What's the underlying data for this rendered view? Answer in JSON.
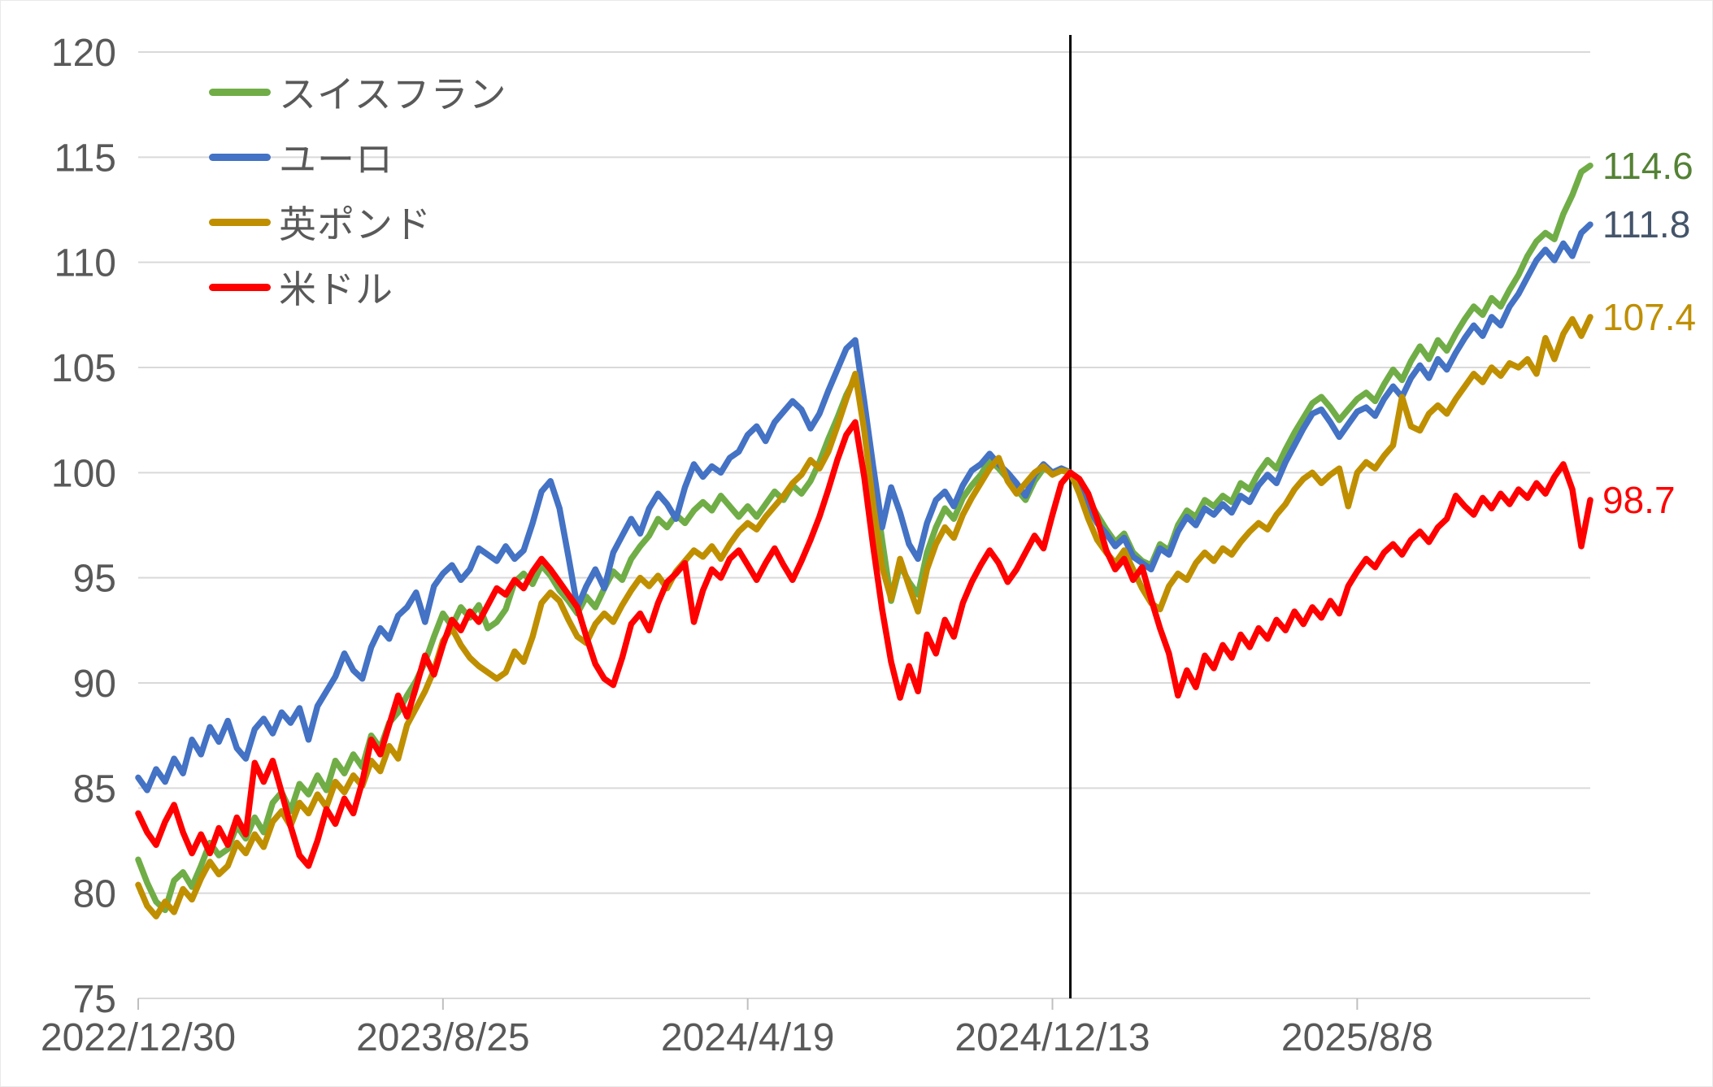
{
  "chart_data": {
    "type": "line",
    "title": "",
    "xlabel": "",
    "ylabel": "",
    "grid": true,
    "legend_position": "top-left-inside",
    "x_axis": {
      "start_label": "2022/12/30",
      "tick_indices": [
        0,
        34,
        68,
        102,
        136
      ],
      "tick_labels": [
        "2022/12/30",
        "2023/8/25",
        "2024/4/19",
        "2024/12/13",
        "2025/8/8"
      ],
      "frequency": "weekly"
    },
    "y_axis": {
      "min": 75,
      "max": 120,
      "step": 5,
      "tick_labels_top_down": [
        "120",
        "115",
        "110",
        "105",
        "100",
        "95",
        "90",
        "85",
        "80",
        "75"
      ]
    },
    "event_line": {
      "index": 104,
      "color": "#000000",
      "meaning": "index base = 100"
    },
    "series": [
      {
        "name": "スイスフラン",
        "color": "#70AD47",
        "label_color": "#548235",
        "end_label": "114.6",
        "end_value": 114.6,
        "values": [
          81.6,
          80.5,
          79.6,
          79.2,
          80.6,
          81.0,
          80.3,
          81.3,
          82.4,
          81.8,
          82.1,
          83.2,
          82.6,
          83.6,
          82.9,
          84.3,
          84.8,
          83.9,
          85.2,
          84.7,
          85.6,
          84.9,
          86.3,
          85.7,
          86.6,
          86.0,
          87.5,
          86.9,
          88.1,
          88.6,
          89.4,
          90.1,
          91.0,
          92.2,
          93.3,
          92.7,
          93.6,
          93.1,
          93.7,
          92.6,
          92.9,
          93.5,
          94.8,
          95.2,
          94.7,
          95.6,
          95.1,
          94.4,
          93.9,
          93.3,
          94.1,
          93.6,
          94.5,
          95.3,
          94.9,
          95.9,
          96.5,
          97.0,
          97.8,
          97.4,
          98.0,
          97.6,
          98.2,
          98.6,
          98.2,
          98.9,
          98.4,
          97.9,
          98.4,
          97.9,
          98.5,
          99.1,
          98.7,
          99.4,
          99.0,
          99.6,
          100.5,
          101.6,
          102.6,
          103.7,
          104.5,
          102.6,
          99.8,
          96.8,
          93.9,
          95.6,
          94.8,
          94.2,
          96.2,
          97.4,
          98.3,
          97.8,
          98.8,
          99.4,
          99.9,
          100.6,
          100.2,
          99.7,
          99.2,
          98.7,
          99.6,
          100.2,
          100.0,
          100.2,
          100.0,
          99.4,
          98.7,
          98.0,
          97.3,
          96.7,
          97.1,
          96.2,
          95.8,
          95.6,
          96.6,
          96.3,
          97.5,
          98.2,
          97.9,
          98.7,
          98.4,
          98.9,
          98.6,
          99.5,
          99.2,
          100.0,
          100.6,
          100.2,
          101.1,
          101.9,
          102.6,
          103.3,
          103.6,
          103.1,
          102.5,
          103.0,
          103.5,
          103.8,
          103.4,
          104.2,
          104.9,
          104.4,
          105.3,
          106.0,
          105.4,
          106.3,
          105.8,
          106.6,
          107.3,
          107.9,
          107.5,
          108.3,
          107.9,
          108.7,
          109.4,
          110.3,
          111.0,
          111.4,
          111.1,
          112.3,
          113.2,
          114.3,
          114.6
        ]
      },
      {
        "name": "ユーロ",
        "color": "#4472C4",
        "label_color": "#44546A",
        "end_label": "111.8",
        "end_value": 111.8,
        "values": [
          85.5,
          84.9,
          85.9,
          85.3,
          86.4,
          85.7,
          87.3,
          86.6,
          87.9,
          87.2,
          88.2,
          86.9,
          86.4,
          87.8,
          88.3,
          87.6,
          88.6,
          88.1,
          88.8,
          87.3,
          88.9,
          89.6,
          90.3,
          91.4,
          90.6,
          90.2,
          91.7,
          92.6,
          92.1,
          93.2,
          93.6,
          94.3,
          92.9,
          94.6,
          95.2,
          95.6,
          94.9,
          95.4,
          96.4,
          96.1,
          95.8,
          96.5,
          95.9,
          96.3,
          97.6,
          99.1,
          99.6,
          98.3,
          96.0,
          93.6,
          94.6,
          95.4,
          94.5,
          96.2,
          97.0,
          97.8,
          97.1,
          98.3,
          99.0,
          98.5,
          97.8,
          99.3,
          100.4,
          99.8,
          100.3,
          100.0,
          100.7,
          101.0,
          101.8,
          102.2,
          101.5,
          102.4,
          102.9,
          103.4,
          103.0,
          102.1,
          102.8,
          103.9,
          104.9,
          105.9,
          106.3,
          103.4,
          100.3,
          97.4,
          99.3,
          98.1,
          96.6,
          95.9,
          97.6,
          98.7,
          99.1,
          98.4,
          99.4,
          100.1,
          100.4,
          100.9,
          100.4,
          100.0,
          99.5,
          98.9,
          99.9,
          100.4,
          100.0,
          100.2,
          100.0,
          99.2,
          98.4,
          97.6,
          97.1,
          96.5,
          96.9,
          96.0,
          95.7,
          95.4,
          96.4,
          96.1,
          97.2,
          97.9,
          97.5,
          98.3,
          98.0,
          98.5,
          98.1,
          98.9,
          98.6,
          99.4,
          99.9,
          99.5,
          100.5,
          101.3,
          102.1,
          102.8,
          103.0,
          102.4,
          101.7,
          102.3,
          102.9,
          103.1,
          102.7,
          103.5,
          104.1,
          103.6,
          104.5,
          105.1,
          104.5,
          105.4,
          104.9,
          105.7,
          106.4,
          107.0,
          106.5,
          107.4,
          107.0,
          107.9,
          108.5,
          109.3,
          110.1,
          110.6,
          110.1,
          110.9,
          110.3,
          111.4,
          111.8
        ]
      },
      {
        "name": "英ポンド",
        "color": "#BF8F00",
        "label_color": "#BF8F00",
        "end_label": "107.4",
        "end_value": 107.4,
        "values": [
          80.4,
          79.4,
          78.9,
          79.6,
          79.1,
          80.2,
          79.7,
          80.7,
          81.5,
          80.9,
          81.3,
          82.4,
          81.9,
          82.8,
          82.2,
          83.4,
          83.9,
          83.2,
          84.3,
          83.8,
          84.7,
          84.1,
          85.3,
          84.8,
          85.6,
          85.1,
          86.3,
          85.8,
          87.0,
          86.4,
          88.0,
          88.8,
          89.6,
          90.6,
          92.0,
          92.6,
          91.8,
          91.2,
          90.8,
          90.5,
          90.2,
          90.5,
          91.5,
          91.0,
          92.2,
          93.8,
          94.3,
          93.9,
          93.0,
          92.2,
          91.9,
          92.8,
          93.3,
          92.9,
          93.7,
          94.4,
          95.0,
          94.6,
          95.1,
          94.5,
          95.3,
          95.8,
          96.3,
          96.0,
          96.5,
          95.9,
          96.6,
          97.2,
          97.6,
          97.3,
          97.9,
          98.4,
          98.9,
          99.5,
          99.9,
          100.6,
          100.2,
          101.0,
          102.2,
          103.5,
          104.7,
          102.0,
          98.5,
          95.5,
          94.0,
          95.9,
          94.6,
          93.4,
          95.4,
          96.6,
          97.4,
          96.9,
          98.0,
          98.8,
          99.5,
          100.2,
          100.7,
          99.6,
          99.0,
          99.5,
          100.0,
          100.3,
          99.9,
          100.1,
          100.0,
          99.0,
          97.8,
          96.8,
          96.2,
          95.7,
          96.3,
          95.4,
          94.5,
          93.8,
          93.5,
          94.6,
          95.2,
          94.9,
          95.7,
          96.2,
          95.8,
          96.4,
          96.1,
          96.7,
          97.2,
          97.6,
          97.3,
          98.0,
          98.5,
          99.2,
          99.7,
          100.0,
          99.5,
          99.9,
          100.2,
          98.4,
          100.0,
          100.5,
          100.2,
          100.8,
          101.3,
          103.6,
          102.2,
          102.0,
          102.8,
          103.2,
          102.8,
          103.5,
          104.1,
          104.7,
          104.3,
          105.0,
          104.6,
          105.2,
          105.0,
          105.4,
          104.7,
          106.4,
          105.4,
          106.6,
          107.3,
          106.5,
          107.4
        ]
      },
      {
        "name": "米ドル",
        "color": "#FF0000",
        "label_color": "#FF0000",
        "end_label": "98.7",
        "end_value": 98.7,
        "values": [
          83.8,
          82.9,
          82.3,
          83.4,
          84.2,
          82.9,
          81.9,
          82.8,
          81.9,
          83.1,
          82.3,
          83.6,
          82.8,
          86.2,
          85.3,
          86.3,
          84.8,
          83.2,
          81.8,
          81.3,
          82.5,
          84.0,
          83.3,
          84.5,
          83.8,
          85.3,
          87.3,
          86.6,
          88.0,
          89.4,
          88.4,
          89.8,
          91.3,
          90.4,
          91.8,
          93.0,
          92.5,
          93.4,
          92.9,
          93.7,
          94.5,
          94.2,
          94.9,
          94.5,
          95.3,
          95.9,
          95.4,
          94.8,
          94.2,
          93.6,
          92.2,
          90.9,
          90.2,
          89.9,
          91.2,
          92.8,
          93.3,
          92.5,
          93.8,
          94.8,
          95.2,
          95.7,
          92.9,
          94.4,
          95.4,
          95.0,
          95.9,
          96.3,
          95.6,
          94.9,
          95.7,
          96.4,
          95.6,
          94.9,
          95.8,
          96.8,
          97.9,
          99.2,
          100.6,
          101.8,
          102.4,
          99.8,
          96.5,
          93.5,
          91.0,
          89.3,
          90.8,
          89.6,
          92.3,
          91.4,
          93.0,
          92.2,
          93.8,
          94.8,
          95.6,
          96.3,
          95.7,
          94.8,
          95.4,
          96.2,
          97.0,
          96.4,
          98.0,
          99.5,
          100.0,
          99.7,
          99.0,
          97.8,
          96.3,
          95.4,
          95.9,
          94.9,
          95.5,
          94.0,
          92.6,
          91.4,
          89.4,
          90.6,
          89.8,
          91.3,
          90.7,
          91.8,
          91.2,
          92.3,
          91.7,
          92.6,
          92.1,
          93.0,
          92.5,
          93.4,
          92.8,
          93.6,
          93.1,
          93.9,
          93.3,
          94.6,
          95.3,
          95.9,
          95.5,
          96.2,
          96.6,
          96.1,
          96.8,
          97.2,
          96.7,
          97.4,
          97.8,
          98.9,
          98.4,
          98.0,
          98.8,
          98.3,
          99.0,
          98.5,
          99.2,
          98.8,
          99.5,
          99.0,
          99.8,
          100.4,
          99.2,
          96.5,
          98.7
        ]
      }
    ]
  },
  "styles": {
    "grid_color": "#D9D9D9",
    "tick_color": "#BFBFBF",
    "axis_text_color": "#595959",
    "legend_text_color": "#595959",
    "background": "#FFFFFF"
  }
}
